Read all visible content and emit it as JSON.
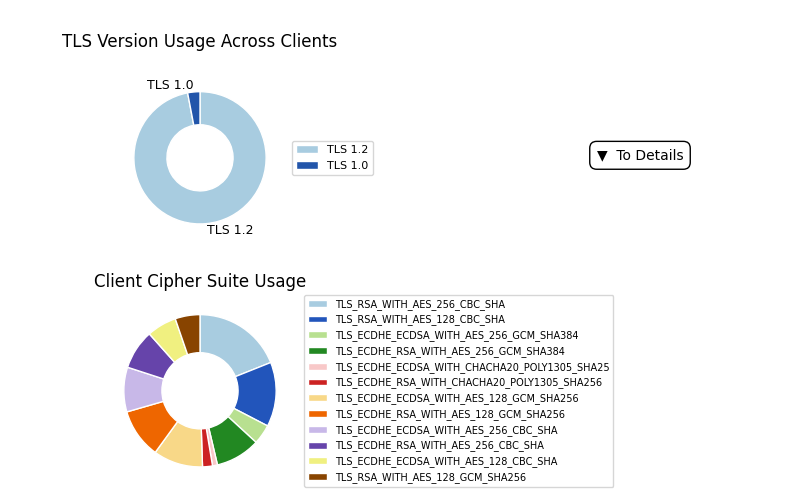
{
  "chart_data": [
    {
      "type": "pie",
      "title": "TLS Version Usage Across Clients",
      "categories": [
        "TLS 1.2",
        "TLS 1.0"
      ],
      "values": [
        97,
        3
      ],
      "colors": [
        "#a8cce0",
        "#2255aa"
      ],
      "labels": [
        "TLS 1.2",
        "TLS 1.0"
      ],
      "legend": "center left",
      "annotations": [
        "▼  To Details"
      ]
    },
    {
      "type": "pie",
      "title": "Client Cipher Suite Usage",
      "categories": [
        "TLS_RSA_WITH_AES_256_CBC_SHA",
        "TLS_RSA_WITH_AES_128_CBC_SHA",
        "TLS_ECDHE_ECDSA_WITH_AES_256_GCM_SHA384",
        "TLS_ECDHE_RSA_WITH_AES_256_GCM_SHA384",
        "TLS_ECDHE_ECDSA_WITH_CHACHA20_POLY1305_SHA25",
        "TLS_ECDHE_RSA_WITH_CHACHA20_POLY1305_SHA256",
        "TLS_ECDHE_ECDSA_WITH_AES_128_GCM_SHA256",
        "TLS_ECDHE_RSA_WITH_AES_128_GCM_SHA256",
        "TLS_ECDHE_ECDSA_WITH_AES_256_CBC_SHA",
        "TLS_ECDHE_RSA_WITH_AES_256_CBC_SHA",
        "TLS_ECDHE_ECDSA_WITH_AES_128_CBC_SHA",
        "TLS_RSA_WITH_AES_128_GCM_SHA256"
      ],
      "values": [
        18,
        13,
        4,
        9,
        1,
        2,
        10,
        10,
        9,
        8,
        6,
        5
      ],
      "colors": [
        "#a8cce0",
        "#2255bb",
        "#b8e090",
        "#228822",
        "#f8c8c8",
        "#cc2222",
        "#f8d888",
        "#ee6600",
        "#c8b8e8",
        "#6644aa",
        "#f0f080",
        "#884400"
      ],
      "legend": "center left"
    }
  ]
}
